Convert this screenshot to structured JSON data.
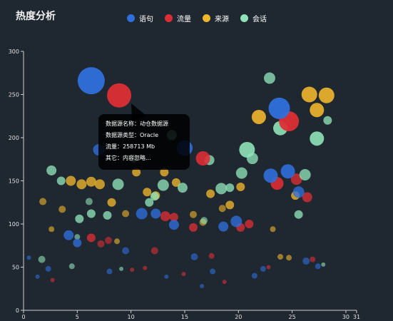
{
  "title": "热度分析",
  "legend": [
    {
      "name": "语句",
      "color": "#2f6fdc"
    },
    {
      "name": "流量",
      "color": "#dd2e35"
    },
    {
      "name": "来源",
      "color": "#f0b62c"
    },
    {
      "name": "会话",
      "color": "#8fe3b9"
    }
  ],
  "tooltip": {
    "line1": "数据源名称：动仓数据源",
    "line2": "数据源类型：Oracle",
    "line3": "流量：258713 Mb",
    "line4": "其它：内容忽略..."
  },
  "chart_data": {
    "type": "scatter",
    "title": "",
    "xlabel": "",
    "ylabel": "",
    "xlim": [
      0,
      31
    ],
    "ylim": [
      0,
      300
    ],
    "x_ticks": [
      0,
      5,
      10,
      15,
      20,
      25,
      30,
      31
    ],
    "y_ticks": [
      0,
      50,
      100,
      150,
      200,
      250,
      300
    ],
    "grid": false,
    "legend_position": "top",
    "series": [
      {
        "name": "语句",
        "color": "#2f6fdc",
        "points": [
          {
            "x": 6.3,
            "y": 266,
            "r": 19
          },
          {
            "x": 23.8,
            "y": 234,
            "r": 15
          },
          {
            "x": 15,
            "y": 188,
            "r": 11
          },
          {
            "x": 7,
            "y": 186,
            "r": 8
          },
          {
            "x": 23.0,
            "y": 156,
            "r": 10
          },
          {
            "x": 24.6,
            "y": 161,
            "r": 10
          },
          {
            "x": 25.6,
            "y": 137,
            "r": 8
          },
          {
            "x": 19.8,
            "y": 103,
            "r": 8
          },
          {
            "x": 11,
            "y": 112,
            "r": 8
          },
          {
            "x": 12.3,
            "y": 112,
            "r": 7
          },
          {
            "x": 14,
            "y": 99,
            "r": 7
          },
          {
            "x": 18.6,
            "y": 97,
            "r": 7
          },
          {
            "x": 4.2,
            "y": 87,
            "r": 7
          },
          {
            "x": 5,
            "y": 78,
            "r": 6
          },
          {
            "x": 9.5,
            "y": 69,
            "r": 5
          },
          {
            "x": 15.9,
            "y": 62,
            "r": 5
          },
          {
            "x": 2.3,
            "y": 48,
            "r": 4
          },
          {
            "x": 17.6,
            "y": 45,
            "r": 4
          },
          {
            "x": 21.5,
            "y": 40,
            "r": 4
          },
          {
            "x": 22.3,
            "y": 48,
            "r": 4
          },
          {
            "x": 1.3,
            "y": 39,
            "r": 3
          },
          {
            "x": 8.0,
            "y": 45,
            "r": 4
          },
          {
            "x": 26.3,
            "y": 57,
            "r": 5
          },
          {
            "x": 13.3,
            "y": 39,
            "r": 3
          },
          {
            "x": 16.6,
            "y": 28,
            "r": 3
          },
          {
            "x": 0.5,
            "y": 61,
            "r": 3
          },
          {
            "x": 27.4,
            "y": 51,
            "r": 4
          }
        ]
      },
      {
        "name": "流量",
        "color": "#dd2e35",
        "points": [
          {
            "x": 8.9,
            "y": 249,
            "r": 17
          },
          {
            "x": 24.7,
            "y": 219,
            "r": 14
          },
          {
            "x": 16.7,
            "y": 176,
            "r": 10
          },
          {
            "x": 23.6,
            "y": 147,
            "r": 9
          },
          {
            "x": 25.4,
            "y": 152,
            "r": 8
          },
          {
            "x": 26.4,
            "y": 131,
            "r": 7
          },
          {
            "x": 13.2,
            "y": 109,
            "r": 7
          },
          {
            "x": 14.0,
            "y": 108,
            "r": 6
          },
          {
            "x": 15.8,
            "y": 96,
            "r": 6
          },
          {
            "x": 20.2,
            "y": 96,
            "r": 6
          },
          {
            "x": 21.0,
            "y": 100,
            "r": 6
          },
          {
            "x": 6.3,
            "y": 84,
            "r": 6
          },
          {
            "x": 7.2,
            "y": 77,
            "r": 5
          },
          {
            "x": 7.9,
            "y": 81,
            "r": 5
          },
          {
            "x": 12.2,
            "y": 69,
            "r": 5
          },
          {
            "x": 17.5,
            "y": 63,
            "r": 4
          },
          {
            "x": 10.1,
            "y": 47,
            "r": 3
          },
          {
            "x": 11.3,
            "y": 49,
            "r": 3
          },
          {
            "x": 14.9,
            "y": 42,
            "r": 3
          },
          {
            "x": 18.7,
            "y": 33,
            "r": 3
          },
          {
            "x": 2.7,
            "y": 35,
            "r": 3
          },
          {
            "x": 26.9,
            "y": 59,
            "r": 4
          },
          {
            "x": 22.8,
            "y": 50,
            "r": 3
          }
        ]
      },
      {
        "name": "来源",
        "color": "#f0b62c",
        "points": [
          {
            "x": 26.6,
            "y": 250,
            "r": 11
          },
          {
            "x": 28.2,
            "y": 249,
            "r": 11
          },
          {
            "x": 27.3,
            "y": 232,
            "r": 10
          },
          {
            "x": 21.9,
            "y": 224,
            "r": 10
          },
          {
            "x": 4.4,
            "y": 150,
            "r": 7
          },
          {
            "x": 5.4,
            "y": 146,
            "r": 7
          },
          {
            "x": 6.3,
            "y": 149,
            "r": 7
          },
          {
            "x": 7.1,
            "y": 146,
            "r": 7
          },
          {
            "x": 8.2,
            "y": 125,
            "r": 6
          },
          {
            "x": 10.5,
            "y": 160,
            "r": 6
          },
          {
            "x": 11.5,
            "y": 137,
            "r": 6
          },
          {
            "x": 13.1,
            "y": 160,
            "r": 6
          },
          {
            "x": 12.3,
            "y": 133,
            "r": 6
          },
          {
            "x": 14.2,
            "y": 148,
            "r": 6
          },
          {
            "x": 17.4,
            "y": 135,
            "r": 6
          },
          {
            "x": 20.2,
            "y": 143,
            "r": 6
          },
          {
            "x": 19.2,
            "y": 122,
            "r": 6
          },
          {
            "x": 18.5,
            "y": 118,
            "r": 5
          },
          {
            "x": 25.3,
            "y": 133,
            "r": 6
          },
          {
            "x": 1.8,
            "y": 126,
            "r": 5
          },
          {
            "x": 3.6,
            "y": 117,
            "r": 5
          },
          {
            "x": 9.5,
            "y": 112,
            "r": 5
          },
          {
            "x": 15.8,
            "y": 111,
            "r": 5
          },
          {
            "x": 16.7,
            "y": 102,
            "r": 5
          },
          {
            "x": 2.6,
            "y": 94,
            "r": 4
          },
          {
            "x": 8.7,
            "y": 80,
            "r": 4
          },
          {
            "x": 23.2,
            "y": 94,
            "r": 4
          },
          {
            "x": 23.9,
            "y": 62,
            "r": 4
          },
          {
            "x": 24.7,
            "y": 61,
            "r": 4
          }
        ]
      },
      {
        "name": "会话",
        "color": "#8fe3b9",
        "points": [
          {
            "x": 22.9,
            "y": 269,
            "r": 8
          },
          {
            "x": 23.9,
            "y": 211,
            "r": 10
          },
          {
            "x": 27.3,
            "y": 199,
            "r": 10
          },
          {
            "x": 20.8,
            "y": 186,
            "r": 11
          },
          {
            "x": 21.3,
            "y": 176,
            "r": 8
          },
          {
            "x": 17.3,
            "y": 174,
            "r": 7
          },
          {
            "x": 20.3,
            "y": 159,
            "r": 8
          },
          {
            "x": 26.2,
            "y": 157,
            "r": 8
          },
          {
            "x": 13.8,
            "y": 203,
            "r": 7
          },
          {
            "x": 8.8,
            "y": 146,
            "r": 8
          },
          {
            "x": 13.0,
            "y": 145,
            "r": 8
          },
          {
            "x": 12.2,
            "y": 132,
            "r": 6
          },
          {
            "x": 14.8,
            "y": 142,
            "r": 7
          },
          {
            "x": 18.4,
            "y": 141,
            "r": 8
          },
          {
            "x": 19.2,
            "y": 142,
            "r": 6
          },
          {
            "x": 2.6,
            "y": 162,
            "r": 7
          },
          {
            "x": 3.5,
            "y": 150,
            "r": 6
          },
          {
            "x": 11.7,
            "y": 125,
            "r": 6
          },
          {
            "x": 6.1,
            "y": 126,
            "r": 5
          },
          {
            "x": 6.3,
            "y": 112,
            "r": 6
          },
          {
            "x": 7.8,
            "y": 110,
            "r": 6
          },
          {
            "x": 5.2,
            "y": 106,
            "r": 6
          },
          {
            "x": 25.6,
            "y": 111,
            "r": 6
          },
          {
            "x": 28.3,
            "y": 220,
            "r": 6
          },
          {
            "x": 10.2,
            "y": 176,
            "r": 6
          },
          {
            "x": 16.8,
            "y": 104,
            "r": 5
          },
          {
            "x": 1.7,
            "y": 59,
            "r": 5
          },
          {
            "x": 4.5,
            "y": 51,
            "r": 4
          },
          {
            "x": 9.1,
            "y": 48,
            "r": 3
          },
          {
            "x": 5.0,
            "y": 85,
            "r": 4
          },
          {
            "x": 27.9,
            "y": 53,
            "r": 3
          }
        ]
      }
    ]
  }
}
